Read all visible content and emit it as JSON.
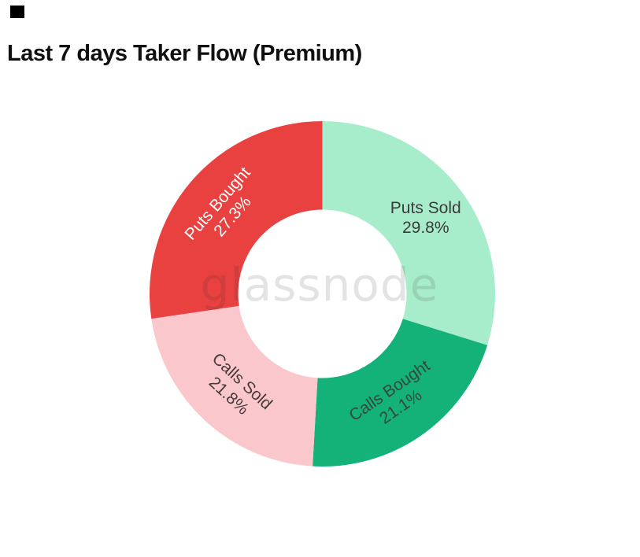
{
  "page": {
    "title": "Last 7 days Taker Flow (Premium)",
    "watermark_text": "glassnode"
  },
  "chart_data": {
    "type": "pie",
    "title": "Last 7 days Taker Flow (Premium)",
    "hole_ratio": 0.49,
    "start_angle_deg": 0,
    "direction": "clockwise",
    "legend": "none",
    "watermark": "glassnode",
    "slices": [
      {
        "label": "Puts Sold",
        "value": 29.8,
        "pct_label": "29.8%",
        "color": "#A8EDCB",
        "text_color": "#3b3b3b",
        "label_rotation_deg": 0
      },
      {
        "label": "Calls Bought",
        "value": 21.1,
        "pct_label": "21.1%",
        "color": "#14B279",
        "text_color": "#33493f",
        "label_rotation_deg": -34.7
      },
      {
        "label": "Calls Sold",
        "value": 21.8,
        "pct_label": "21.8%",
        "color": "#FAC8CC",
        "text_color": "#463a3b",
        "label_rotation_deg": 42.5
      },
      {
        "label": "Puts Bought",
        "value": 27.3,
        "pct_label": "27.3%",
        "color": "#E84140",
        "text_color": "#ffffff",
        "label_rotation_deg": -49.1
      }
    ]
  }
}
